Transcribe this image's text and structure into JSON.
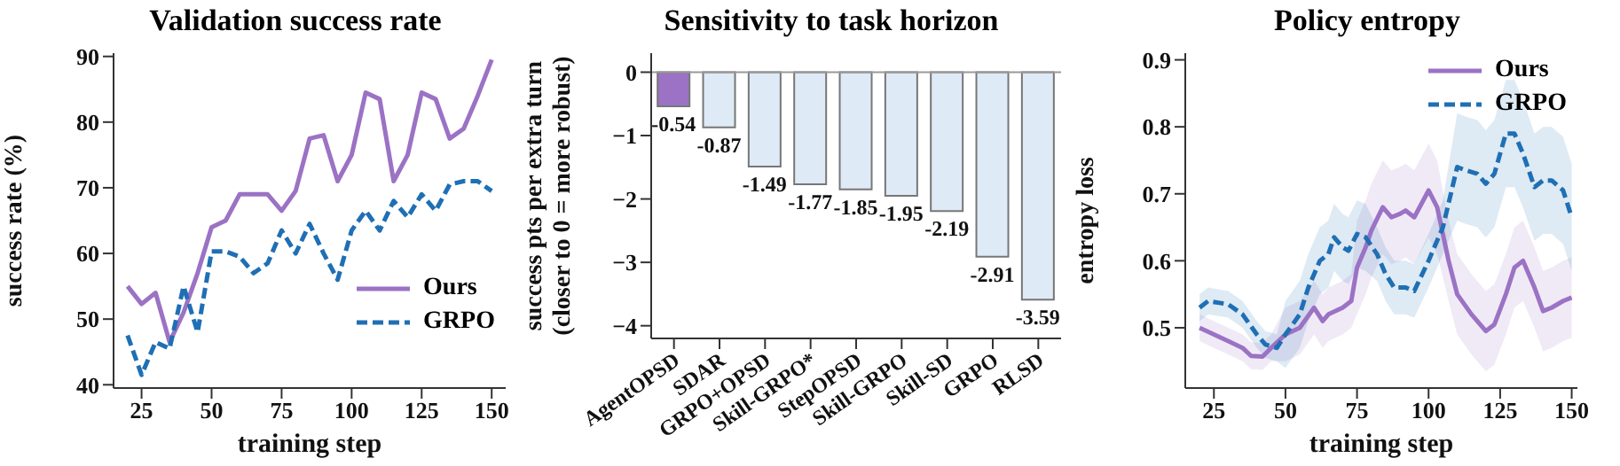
{
  "chart_data": [
    {
      "type": "line",
      "title": "Validation success rate",
      "xlabel": "training step",
      "ylabel": "success rate (%)",
      "xlim": [
        15,
        155
      ],
      "xticks": [
        25,
        50,
        75,
        100,
        125,
        150
      ],
      "ylim": [
        39.5,
        90.5
      ],
      "yticks": [
        40,
        50,
        60,
        70,
        80,
        90
      ],
      "legend": "bottom right",
      "x": [
        20,
        25,
        30,
        35,
        40,
        45,
        50,
        55,
        60,
        65,
        70,
        75,
        80,
        85,
        90,
        95,
        100,
        105,
        110,
        115,
        120,
        125,
        130,
        135,
        140,
        145,
        150
      ],
      "series": [
        {
          "name": "Ours",
          "color": "#9b72c4",
          "line_style": "solid",
          "values": [
            55,
            52.3,
            54,
            46.5,
            51,
            57,
            64,
            65,
            69,
            69,
            69,
            66.5,
            69.5,
            77.5,
            78,
            71,
            75,
            84.5,
            83.5,
            71,
            75,
            84.5,
            83.5,
            77.5,
            79,
            84,
            89.5
          ]
        },
        {
          "name": "GRPO",
          "color": "#1f6fb4",
          "line_style": "dashed",
          "values": [
            47.5,
            41.5,
            46.5,
            45.5,
            55,
            48,
            60.3,
            60.3,
            59.5,
            57,
            58.5,
            63.5,
            60,
            64.5,
            60,
            56,
            63.5,
            66.5,
            63.5,
            68,
            65.5,
            69,
            66.5,
            70.5,
            71,
            71,
            69.5
          ]
        }
      ]
    },
    {
      "type": "bar",
      "title": "Sensitivity to task horizon",
      "ylabel": "success pts per extra turn\n(closer to 0 = more robust)",
      "ylim": [
        -4.2,
        0.3
      ],
      "yticks": [
        {
          "value": -4,
          "label": "−4"
        },
        {
          "value": -3,
          "label": "−3"
        },
        {
          "value": -2,
          "label": "−2"
        },
        {
          "value": -1,
          "label": "−1"
        },
        0
      ],
      "data_labels": true,
      "categories": [
        "AgentOPSD",
        "SDAR",
        "GRPO+OPSD",
        "Skill-GRPO*",
        "StepOPSD",
        "Skill-GRPO",
        "Skill-SD",
        "GRPO",
        "RLSD"
      ],
      "values": [
        -0.54,
        -0.87,
        -1.49,
        -1.77,
        -1.85,
        -1.95,
        -2.19,
        -2.91,
        -3.59
      ],
      "colors": [
        "#9b72c4",
        "#deeaf6",
        "#deeaf6",
        "#deeaf6",
        "#deeaf6",
        "#deeaf6",
        "#deeaf6",
        "#deeaf6",
        "#deeaf6"
      ],
      "ref_lines": [
        {
          "axis": "y",
          "value": 0,
          "color": "#999999"
        }
      ]
    },
    {
      "type": "line",
      "title": "Policy entropy",
      "xlabel": "training step",
      "ylabel": "entropy loss",
      "xlim": [
        15,
        152
      ],
      "xticks": [
        25,
        50,
        75,
        100,
        125,
        150
      ],
      "ylim": [
        0.41,
        0.91
      ],
      "yticks": [
        0.5,
        0.6,
        0.7,
        0.8,
        0.9
      ],
      "legend": "top right",
      "series": [
        {
          "name": "Ours",
          "color": "#9b72c4",
          "line_style": "solid",
          "x": [
            20,
            25,
            30,
            35,
            38,
            42,
            45,
            50,
            55,
            60,
            63,
            65,
            70,
            73,
            75,
            78,
            80,
            84,
            87,
            90,
            92,
            95,
            100,
            103,
            107,
            110,
            115,
            120,
            123,
            127,
            130,
            133,
            137,
            140,
            143,
            147,
            150
          ],
          "values": [
            0.5,
            0.49,
            0.48,
            0.47,
            0.458,
            0.457,
            0.47,
            0.49,
            0.5,
            0.53,
            0.51,
            0.52,
            0.53,
            0.54,
            0.59,
            0.62,
            0.645,
            0.68,
            0.665,
            0.67,
            0.675,
            0.665,
            0.705,
            0.68,
            0.6,
            0.55,
            0.52,
            0.495,
            0.505,
            0.55,
            0.59,
            0.6,
            0.56,
            0.525,
            0.53,
            0.54,
            0.545
          ],
          "lower": [
            0.48,
            0.47,
            0.46,
            0.45,
            0.438,
            0.437,
            0.45,
            0.45,
            0.46,
            0.49,
            0.47,
            0.48,
            0.49,
            0.5,
            0.52,
            0.55,
            0.575,
            0.61,
            0.595,
            0.6,
            0.605,
            0.595,
            0.635,
            0.61,
            0.54,
            0.49,
            0.46,
            0.435,
            0.445,
            0.49,
            0.53,
            0.54,
            0.5,
            0.465,
            0.47,
            0.48,
            0.485
          ],
          "upper": [
            0.52,
            0.51,
            0.5,
            0.49,
            0.478,
            0.477,
            0.49,
            0.53,
            0.54,
            0.57,
            0.55,
            0.56,
            0.57,
            0.58,
            0.66,
            0.69,
            0.715,
            0.75,
            0.735,
            0.74,
            0.745,
            0.735,
            0.775,
            0.75,
            0.66,
            0.61,
            0.58,
            0.555,
            0.565,
            0.61,
            0.65,
            0.66,
            0.62,
            0.585,
            0.59,
            0.6,
            0.605
          ]
        },
        {
          "name": "GRPO",
          "color": "#1f6fb4",
          "line_style": "dashed",
          "x": [
            20,
            23,
            30,
            35,
            40,
            43,
            47,
            50,
            55,
            58,
            62,
            65,
            67,
            70,
            72,
            75,
            78,
            82,
            85,
            88,
            92,
            95,
            100,
            105,
            110,
            113,
            117,
            120,
            123,
            127,
            130,
            133,
            137,
            140,
            143,
            147,
            150
          ],
          "values": [
            0.53,
            0.54,
            0.535,
            0.52,
            0.49,
            0.475,
            0.47,
            0.49,
            0.52,
            0.56,
            0.6,
            0.61,
            0.635,
            0.62,
            0.615,
            0.64,
            0.635,
            0.61,
            0.58,
            0.56,
            0.56,
            0.555,
            0.6,
            0.65,
            0.74,
            0.735,
            0.73,
            0.715,
            0.73,
            0.79,
            0.79,
            0.76,
            0.71,
            0.72,
            0.72,
            0.705,
            0.665
          ],
          "lower": [
            0.51,
            0.52,
            0.515,
            0.5,
            0.47,
            0.455,
            0.45,
            0.44,
            0.47,
            0.51,
            0.55,
            0.56,
            0.585,
            0.57,
            0.565,
            0.59,
            0.585,
            0.57,
            0.54,
            0.52,
            0.52,
            0.515,
            0.56,
            0.61,
            0.66,
            0.655,
            0.65,
            0.635,
            0.65,
            0.71,
            0.71,
            0.68,
            0.63,
            0.64,
            0.64,
            0.625,
            0.585
          ],
          "upper": [
            0.55,
            0.56,
            0.555,
            0.54,
            0.51,
            0.495,
            0.49,
            0.54,
            0.57,
            0.61,
            0.65,
            0.66,
            0.685,
            0.67,
            0.665,
            0.69,
            0.685,
            0.65,
            0.62,
            0.6,
            0.6,
            0.595,
            0.64,
            0.69,
            0.82,
            0.815,
            0.81,
            0.795,
            0.81,
            0.87,
            0.87,
            0.84,
            0.79,
            0.8,
            0.8,
            0.785,
            0.745
          ]
        }
      ]
    }
  ]
}
